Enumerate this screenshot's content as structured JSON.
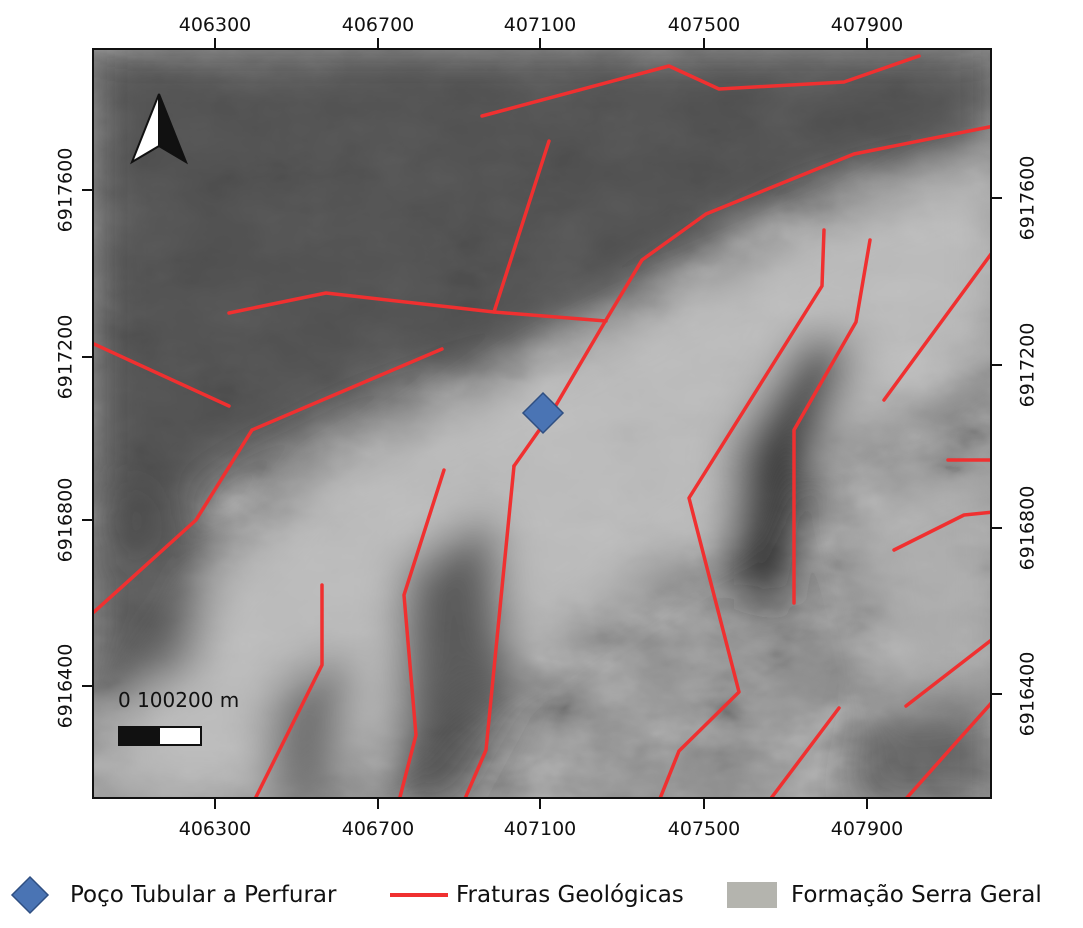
{
  "map": {
    "x_ticks": [
      "406300",
      "406700",
      "407100",
      "407500",
      "407900"
    ],
    "y_ticks": [
      "6917600",
      "6917200",
      "6916800",
      "6916400"
    ],
    "scalebar_label": "0 100200 m",
    "north_arrow": "north-arrow-icon",
    "colors": {
      "fracture": "#f03030",
      "well": "#4a74b4",
      "formation": "#b4b4ae",
      "frame": "#111111"
    }
  },
  "legend": {
    "items": [
      {
        "label": "Poço Tubular a Perfurar",
        "icon": "diamond-icon"
      },
      {
        "label": "Fraturas Geológicas",
        "icon": "line-icon"
      },
      {
        "label": "Formação Serra Geral",
        "icon": "swatch-icon"
      }
    ]
  }
}
